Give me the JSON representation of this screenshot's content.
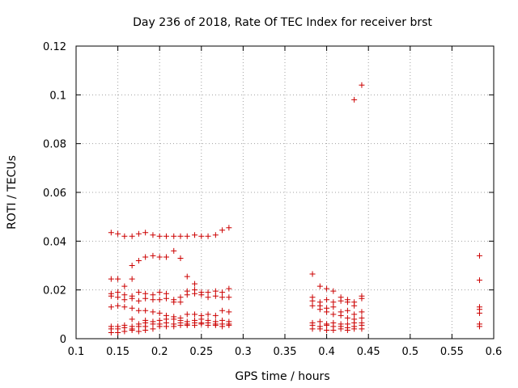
{
  "chart_data": {
    "type": "scatter",
    "title": "Day 236 of 2018, Rate Of TEC Index for receiver brst",
    "xlabel": "GPS time / hours",
    "ylabel": "ROTI / TECUs",
    "xlim": [
      0.1,
      0.6
    ],
    "ylim": [
      0,
      0.12
    ],
    "xticks": [
      "0.1",
      "0.15",
      "0.2",
      "0.25",
      "0.3",
      "0.35",
      "0.4",
      "0.45",
      "0.5",
      "0.55",
      "0.6"
    ],
    "yticks": [
      "0",
      "0.02",
      "0.04",
      "0.06",
      "0.08",
      "0.1",
      "0.12"
    ],
    "grid": true,
    "marker": "+",
    "color": "#cc0000",
    "series": [
      {
        "points": [
          [
            0.142,
            0.0435
          ],
          [
            0.15,
            0.043
          ],
          [
            0.158,
            0.042
          ],
          [
            0.167,
            0.042
          ],
          [
            0.175,
            0.043
          ],
          [
            0.183,
            0.0435
          ],
          [
            0.192,
            0.0425
          ],
          [
            0.2,
            0.042
          ],
          [
            0.208,
            0.042
          ],
          [
            0.217,
            0.042
          ],
          [
            0.225,
            0.042
          ],
          [
            0.233,
            0.042
          ],
          [
            0.242,
            0.0425
          ],
          [
            0.25,
            0.042
          ],
          [
            0.258,
            0.042
          ],
          [
            0.267,
            0.0425
          ],
          [
            0.275,
            0.0445
          ],
          [
            0.283,
            0.0455
          ],
          [
            0.142,
            0.0245
          ],
          [
            0.15,
            0.0245
          ],
          [
            0.158,
            0.0215
          ],
          [
            0.167,
            0.03
          ],
          [
            0.167,
            0.0245
          ],
          [
            0.175,
            0.032
          ],
          [
            0.183,
            0.0335
          ],
          [
            0.192,
            0.034
          ],
          [
            0.2,
            0.0335
          ],
          [
            0.208,
            0.0335
          ],
          [
            0.217,
            0.036
          ],
          [
            0.225,
            0.033
          ],
          [
            0.233,
            0.0255
          ],
          [
            0.242,
            0.0225
          ],
          [
            0.142,
            0.0185
          ],
          [
            0.15,
            0.019
          ],
          [
            0.158,
            0.018
          ],
          [
            0.167,
            0.0175
          ],
          [
            0.175,
            0.019
          ],
          [
            0.183,
            0.0185
          ],
          [
            0.192,
            0.018
          ],
          [
            0.2,
            0.019
          ],
          [
            0.208,
            0.0185
          ],
          [
            0.217,
            0.016
          ],
          [
            0.225,
            0.017
          ],
          [
            0.233,
            0.0195
          ],
          [
            0.242,
            0.02
          ],
          [
            0.25,
            0.019
          ],
          [
            0.258,
            0.019
          ],
          [
            0.267,
            0.0195
          ],
          [
            0.275,
            0.019
          ],
          [
            0.283,
            0.0205
          ],
          [
            0.142,
            0.0175
          ],
          [
            0.15,
            0.017
          ],
          [
            0.158,
            0.016
          ],
          [
            0.167,
            0.0165
          ],
          [
            0.175,
            0.0155
          ],
          [
            0.183,
            0.0165
          ],
          [
            0.192,
            0.016
          ],
          [
            0.2,
            0.016
          ],
          [
            0.208,
            0.0165
          ],
          [
            0.217,
            0.015
          ],
          [
            0.225,
            0.015
          ],
          [
            0.233,
            0.018
          ],
          [
            0.242,
            0.0185
          ],
          [
            0.25,
            0.018
          ],
          [
            0.258,
            0.017
          ],
          [
            0.267,
            0.0175
          ],
          [
            0.275,
            0.017
          ],
          [
            0.283,
            0.017
          ],
          [
            0.142,
            0.013
          ],
          [
            0.15,
            0.0135
          ],
          [
            0.158,
            0.013
          ],
          [
            0.167,
            0.0125
          ],
          [
            0.175,
            0.0115
          ],
          [
            0.183,
            0.0115
          ],
          [
            0.192,
            0.011
          ],
          [
            0.2,
            0.0105
          ],
          [
            0.208,
            0.0095
          ],
          [
            0.217,
            0.009
          ],
          [
            0.225,
            0.0085
          ],
          [
            0.233,
            0.01
          ],
          [
            0.242,
            0.01
          ],
          [
            0.25,
            0.0095
          ],
          [
            0.258,
            0.01
          ],
          [
            0.267,
            0.0095
          ],
          [
            0.275,
            0.0115
          ],
          [
            0.283,
            0.011
          ],
          [
            0.142,
            0.005
          ],
          [
            0.15,
            0.005
          ],
          [
            0.158,
            0.0055
          ],
          [
            0.167,
            0.005
          ],
          [
            0.167,
            0.008
          ],
          [
            0.175,
            0.006
          ],
          [
            0.183,
            0.0065
          ],
          [
            0.183,
            0.0075
          ],
          [
            0.192,
            0.007
          ],
          [
            0.2,
            0.0075
          ],
          [
            0.208,
            0.008
          ],
          [
            0.217,
            0.008
          ],
          [
            0.225,
            0.0075
          ],
          [
            0.233,
            0.007
          ],
          [
            0.242,
            0.0075
          ],
          [
            0.25,
            0.008
          ],
          [
            0.258,
            0.0075
          ],
          [
            0.267,
            0.007
          ],
          [
            0.275,
            0.0075
          ],
          [
            0.283,
            0.007
          ],
          [
            0.142,
            0.004
          ],
          [
            0.15,
            0.004
          ],
          [
            0.158,
            0.0045
          ],
          [
            0.167,
            0.004
          ],
          [
            0.175,
            0.005
          ],
          [
            0.183,
            0.005
          ],
          [
            0.192,
            0.006
          ],
          [
            0.2,
            0.006
          ],
          [
            0.208,
            0.0065
          ],
          [
            0.217,
            0.006
          ],
          [
            0.225,
            0.0065
          ],
          [
            0.233,
            0.006
          ],
          [
            0.242,
            0.0065
          ],
          [
            0.25,
            0.0065
          ],
          [
            0.258,
            0.0065
          ],
          [
            0.267,
            0.006
          ],
          [
            0.275,
            0.006
          ],
          [
            0.283,
            0.006
          ],
          [
            0.142,
            0.0025
          ],
          [
            0.15,
            0.0025
          ],
          [
            0.158,
            0.003
          ],
          [
            0.167,
            0.0035
          ],
          [
            0.175,
            0.003
          ],
          [
            0.183,
            0.0035
          ],
          [
            0.192,
            0.004
          ],
          [
            0.2,
            0.005
          ],
          [
            0.208,
            0.005
          ],
          [
            0.217,
            0.005
          ],
          [
            0.225,
            0.0055
          ],
          [
            0.233,
            0.0055
          ],
          [
            0.242,
            0.0055
          ],
          [
            0.25,
            0.006
          ],
          [
            0.258,
            0.0055
          ],
          [
            0.267,
            0.0055
          ],
          [
            0.275,
            0.005
          ],
          [
            0.283,
            0.0055
          ],
          [
            0.383,
            0.0265
          ],
          [
            0.392,
            0.0215
          ],
          [
            0.4,
            0.0205
          ],
          [
            0.408,
            0.0195
          ],
          [
            0.417,
            0.017
          ],
          [
            0.425,
            0.016
          ],
          [
            0.433,
            0.015
          ],
          [
            0.442,
            0.0165
          ],
          [
            0.442,
            0.0175
          ],
          [
            0.383,
            0.017
          ],
          [
            0.392,
            0.015
          ],
          [
            0.4,
            0.016
          ],
          [
            0.408,
            0.015
          ],
          [
            0.417,
            0.0155
          ],
          [
            0.425,
            0.015
          ],
          [
            0.433,
            0.0135
          ],
          [
            0.442,
            0.011
          ],
          [
            0.383,
            0.0155
          ],
          [
            0.392,
            0.0135
          ],
          [
            0.4,
            0.0125
          ],
          [
            0.408,
            0.013
          ],
          [
            0.417,
            0.011
          ],
          [
            0.425,
            0.0115
          ],
          [
            0.433,
            0.01
          ],
          [
            0.442,
            0.0085
          ],
          [
            0.383,
            0.0135
          ],
          [
            0.392,
            0.012
          ],
          [
            0.4,
            0.011
          ],
          [
            0.408,
            0.01
          ],
          [
            0.417,
            0.0095
          ],
          [
            0.425,
            0.0085
          ],
          [
            0.433,
            0.008
          ],
          [
            0.383,
            0.0065
          ],
          [
            0.392,
            0.007
          ],
          [
            0.4,
            0.006
          ],
          [
            0.408,
            0.0065
          ],
          [
            0.417,
            0.006
          ],
          [
            0.425,
            0.006
          ],
          [
            0.433,
            0.0065
          ],
          [
            0.442,
            0.0065
          ],
          [
            0.383,
            0.0055
          ],
          [
            0.392,
            0.005
          ],
          [
            0.4,
            0.0055
          ],
          [
            0.408,
            0.005
          ],
          [
            0.417,
            0.005
          ],
          [
            0.425,
            0.0045
          ],
          [
            0.433,
            0.005
          ],
          [
            0.442,
            0.0055
          ],
          [
            0.383,
            0.004
          ],
          [
            0.392,
            0.004
          ],
          [
            0.4,
            0.0035
          ],
          [
            0.408,
            0.0035
          ],
          [
            0.417,
            0.004
          ],
          [
            0.425,
            0.0035
          ],
          [
            0.433,
            0.004
          ],
          [
            0.442,
            0.004
          ],
          [
            0.433,
            0.098
          ],
          [
            0.442,
            0.104
          ],
          [
            0.583,
            0.034
          ],
          [
            0.583,
            0.024
          ],
          [
            0.583,
            0.013
          ],
          [
            0.583,
            0.012
          ],
          [
            0.583,
            0.0105
          ],
          [
            0.583,
            0.006
          ],
          [
            0.583,
            0.005
          ]
        ]
      }
    ]
  }
}
